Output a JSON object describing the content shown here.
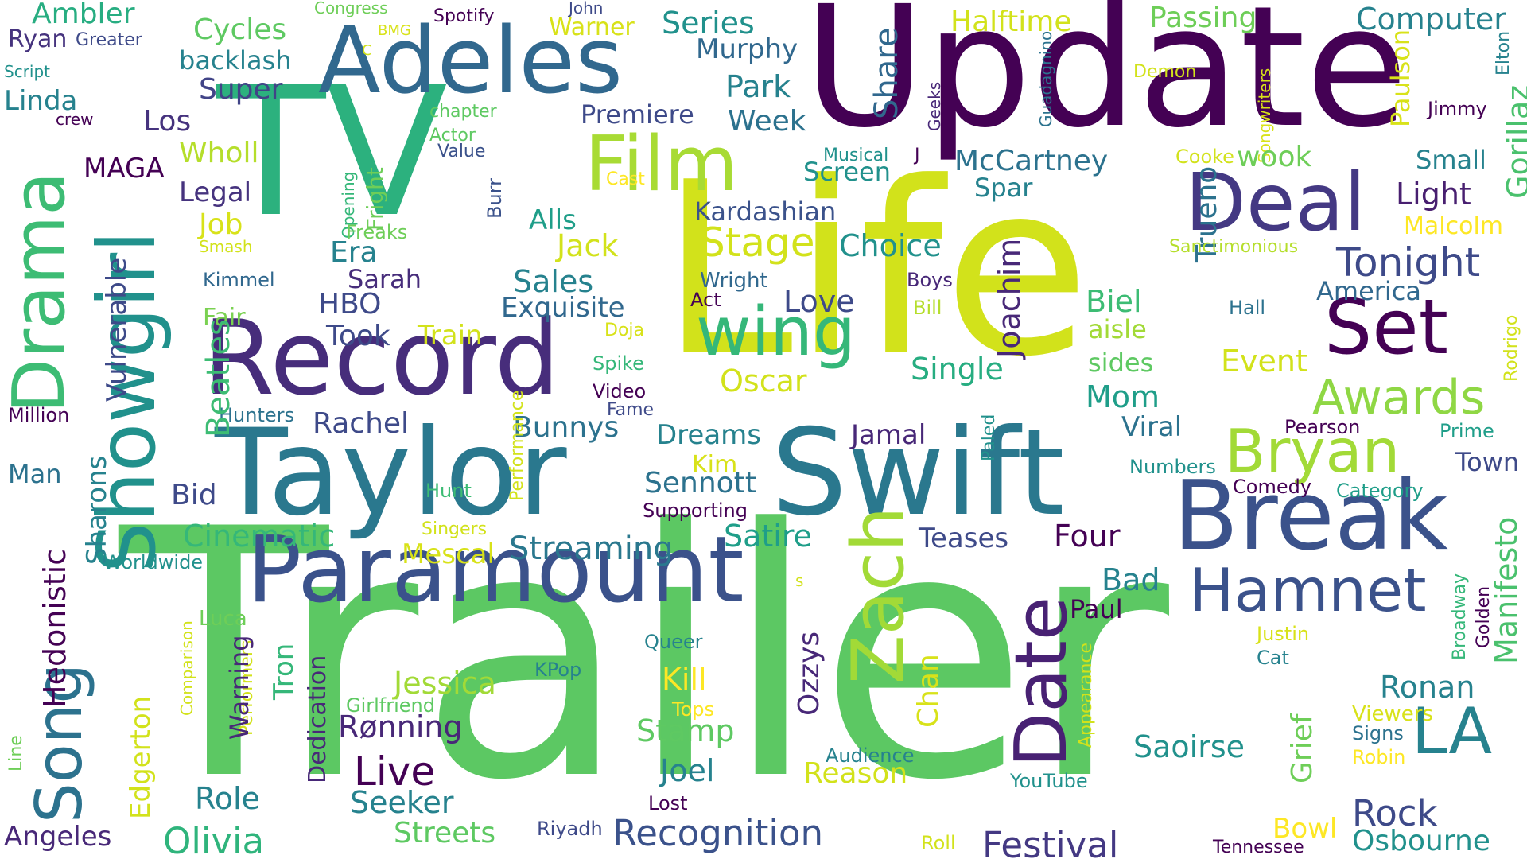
{
  "palette": {
    "dark_purple": "#440154",
    "indigo": "#46337e",
    "slate_blue": "#3e4a89",
    "steel_blue": "#31688e",
    "teal_blue": "#26828e",
    "teal": "#1f9e89",
    "sea_green": "#35b779",
    "green": "#6ece58",
    "lime": "#b5de2b",
    "yellow": "#fde725"
  },
  "words": [
    {
      "text": "Trailer",
      "color": "#5cc863"
    },
    {
      "text": "Life",
      "color": "#d2e21b"
    },
    {
      "text": "TV",
      "color": "#2cb17e"
    },
    {
      "text": "Update",
      "color": "#440154"
    },
    {
      "text": "Taylor",
      "color": "#2a788e"
    },
    {
      "text": "Swift",
      "color": "#2a788e"
    },
    {
      "text": "Record",
      "color": "#472d7b"
    },
    {
      "text": "Paramount",
      "color": "#3b528b"
    },
    {
      "text": "Adeles",
      "color": "#31688e"
    },
    {
      "text": "Break",
      "color": "#3b528b"
    },
    {
      "text": "Showgirl",
      "color": "#21918c"
    },
    {
      "text": "Drama",
      "color": "#3dbc74"
    },
    {
      "text": "Song",
      "color": "#2c728e"
    },
    {
      "text": "Date",
      "color": "#482173"
    },
    {
      "text": "Zach",
      "color": "#a2da37"
    },
    {
      "text": "Deal",
      "color": "#443983"
    },
    {
      "text": "Set",
      "color": "#440154"
    },
    {
      "text": "Film",
      "color": "#a8db34"
    },
    {
      "text": "wing",
      "color": "#35b779"
    },
    {
      "text": "Hamnet",
      "color": "#3b528b"
    },
    {
      "text": "LA",
      "color": "#26828e"
    },
    {
      "text": "Bryan",
      "color": "#a2da37"
    },
    {
      "text": "Awards",
      "color": "#8fd744"
    },
    {
      "text": "Festival",
      "color": "#443983"
    },
    {
      "text": "Recognition",
      "color": "#3b528b"
    },
    {
      "text": "Olivia",
      "color": "#2fb47c"
    },
    {
      "text": "Rock",
      "color": "#3e4a89"
    },
    {
      "text": "Stage",
      "color": "#d2e21b"
    },
    {
      "text": "Tonight",
      "color": "#3e4a89"
    },
    {
      "text": "Live",
      "color": "#440154"
    },
    {
      "text": "Streaming",
      "color": "#2a788e"
    },
    {
      "text": "Paulson",
      "color": "#d8e219"
    },
    {
      "text": "Light",
      "color": "#481f70"
    },
    {
      "text": "Gorillaz",
      "color": "#4ac16d"
    },
    {
      "text": "Computer",
      "color": "#26828e"
    },
    {
      "text": "Halftime",
      "color": "#d2e21b"
    },
    {
      "text": "Passing",
      "color": "#6ece58"
    },
    {
      "text": "Series",
      "color": "#21918c"
    },
    {
      "text": "Murphy",
      "color": "#31688e"
    },
    {
      "text": "Park",
      "color": "#26828e"
    },
    {
      "text": "Week",
      "color": "#2c728e"
    },
    {
      "text": "Premiere",
      "color": "#3e4a89"
    },
    {
      "text": "Share",
      "color": "#31688e"
    },
    {
      "text": "Geeks",
      "color": "#482878"
    },
    {
      "text": "Cycles",
      "color": "#5ec962"
    },
    {
      "text": "Ambler",
      "color": "#27ad81"
    },
    {
      "text": "Ryan",
      "color": "#46337e"
    },
    {
      "text": "Greater",
      "color": "#3e4a89"
    },
    {
      "text": "backlash",
      "color": "#26828e"
    },
    {
      "text": "Super",
      "color": "#414487"
    },
    {
      "text": "Congress",
      "color": "#6ece58"
    },
    {
      "text": "Spotify",
      "color": "#440154"
    },
    {
      "text": "John",
      "color": "#3e4a89"
    },
    {
      "text": "Warner",
      "color": "#d8e219"
    },
    {
      "text": "BMG",
      "color": "#d8e219"
    },
    {
      "text": "C",
      "color": "#d2e21b"
    },
    {
      "text": "Script",
      "color": "#21918c"
    },
    {
      "text": "Linda",
      "color": "#26828e"
    },
    {
      "text": "crew",
      "color": "#440154"
    },
    {
      "text": "Los",
      "color": "#46337e"
    },
    {
      "text": "chapter",
      "color": "#5ec962"
    },
    {
      "text": "Actor",
      "color": "#5ec962"
    },
    {
      "text": "Value",
      "color": "#3b528b"
    },
    {
      "text": "Wholl",
      "color": "#b5de2b"
    },
    {
      "text": "MAGA",
      "color": "#440154"
    },
    {
      "text": "Legal",
      "color": "#46337e"
    },
    {
      "text": "Job",
      "color": "#d8e219"
    },
    {
      "text": "Smash",
      "color": "#d2e21b"
    },
    {
      "text": "Kimmel",
      "color": "#31688e"
    },
    {
      "text": "Fair",
      "color": "#7ad151"
    },
    {
      "text": "Opening",
      "color": "#35b779"
    },
    {
      "text": "Fright",
      "color": "#6ece58"
    },
    {
      "text": "Freaks",
      "color": "#6ece58"
    },
    {
      "text": "Era",
      "color": "#26828e"
    },
    {
      "text": "Sarah",
      "color": "#472d7b"
    },
    {
      "text": "HBO",
      "color": "#3e4a89"
    },
    {
      "text": "Took",
      "color": "#3e4a89"
    },
    {
      "text": "Train",
      "color": "#d2e21b"
    },
    {
      "text": "Burr",
      "color": "#3b528b"
    },
    {
      "text": "Cast",
      "color": "#fde725"
    },
    {
      "text": "Musical",
      "color": "#21918c"
    },
    {
      "text": "J",
      "color": "#440154"
    },
    {
      "text": "Screen",
      "color": "#21918c"
    },
    {
      "text": "McCartney",
      "color": "#2c728e"
    },
    {
      "text": "Spar",
      "color": "#26828e"
    },
    {
      "text": "Kardashian",
      "color": "#3b528b"
    },
    {
      "text": "Alls",
      "color": "#1f9e89"
    },
    {
      "text": "Jack",
      "color": "#d2e21b"
    },
    {
      "text": "Choice",
      "color": "#21918c"
    },
    {
      "text": "Sales",
      "color": "#26828e"
    },
    {
      "text": "Exquisite",
      "color": "#31688e"
    },
    {
      "text": "Wright",
      "color": "#31688e"
    },
    {
      "text": "Act",
      "color": "#440154"
    },
    {
      "text": "Love",
      "color": "#3e4a89"
    },
    {
      "text": "Boys",
      "color": "#482878"
    },
    {
      "text": "Bill",
      "color": "#b5de2b"
    },
    {
      "text": "Joachim",
      "color": "#482878"
    },
    {
      "text": "Trueno",
      "color": "#2c728e"
    },
    {
      "text": "Sanctimonious",
      "color": "#b5de2b"
    },
    {
      "text": "Biel",
      "color": "#3dbc74"
    },
    {
      "text": "aisle",
      "color": "#a2da37"
    },
    {
      "text": "sides",
      "color": "#5ec962"
    },
    {
      "text": "Mom",
      "color": "#1f9e89"
    },
    {
      "text": "Event",
      "color": "#d2e21b"
    },
    {
      "text": "Single",
      "color": "#27ad81"
    },
    {
      "text": "Oscar",
      "color": "#d2e21b"
    },
    {
      "text": "Doja",
      "color": "#d8e219"
    },
    {
      "text": "Spike",
      "color": "#35b779"
    },
    {
      "text": "Video",
      "color": "#440154"
    },
    {
      "text": "Fame",
      "color": "#3e4a89"
    },
    {
      "text": "Demon",
      "color": "#d2e21b"
    },
    {
      "text": "Songwriters",
      "color": "#d8e219"
    },
    {
      "text": "Guadagnino",
      "color": "#2c728e"
    },
    {
      "text": "Elton",
      "color": "#26828e"
    },
    {
      "text": "Jimmy",
      "color": "#440154"
    },
    {
      "text": "Cooke",
      "color": "#d2e21b"
    },
    {
      "text": "wook",
      "color": "#6ece58"
    },
    {
      "text": "Small",
      "color": "#26828e"
    },
    {
      "text": "Malcolm",
      "color": "#fde725"
    },
    {
      "text": "America",
      "color": "#31688e"
    },
    {
      "text": "Hall",
      "color": "#2c728e"
    },
    {
      "text": "Rodrigo",
      "color": "#d2e21b"
    },
    {
      "text": "Prime",
      "color": "#1f9e89"
    },
    {
      "text": "Pearson",
      "color": "#440154"
    },
    {
      "text": "Town",
      "color": "#3e4a89"
    },
    {
      "text": "Viral",
      "color": "#2c728e"
    },
    {
      "text": "Numbers",
      "color": "#21918c"
    },
    {
      "text": "Comedy",
      "color": "#440154"
    },
    {
      "text": "Category",
      "color": "#1f9e89"
    },
    {
      "text": "Paled",
      "color": "#21918c"
    },
    {
      "text": "Jamal",
      "color": "#482878"
    },
    {
      "text": "Kim",
      "color": "#d8e219"
    },
    {
      "text": "Dreams",
      "color": "#26828e"
    },
    {
      "text": "Sennott",
      "color": "#2c728e"
    },
    {
      "text": "Supporting",
      "color": "#440154"
    },
    {
      "text": "Bunnys",
      "color": "#2c728e"
    },
    {
      "text": "Rachel",
      "color": "#3e4a89"
    },
    {
      "text": "Hunters",
      "color": "#2c728e"
    },
    {
      "text": "Beatles",
      "color": "#3dbc74"
    },
    {
      "text": "Vulnerable",
      "color": "#3e4a89"
    },
    {
      "text": "Million",
      "color": "#440154"
    },
    {
      "text": "Man",
      "color": "#2c728e"
    },
    {
      "text": "Bid",
      "color": "#3e4a89"
    },
    {
      "text": "Hunt",
      "color": "#3dbc74"
    },
    {
      "text": "Performance",
      "color": "#d2e21b"
    },
    {
      "text": "Singers",
      "color": "#d2e21b"
    },
    {
      "text": "Cinematic",
      "color": "#35b779"
    },
    {
      "text": "Sharons",
      "color": "#26828e"
    },
    {
      "text": "Hedonistic",
      "color": "#440154"
    },
    {
      "text": "Worldwide",
      "color": "#21918c"
    },
    {
      "text": "Mescal",
      "color": "#d8e219"
    },
    {
      "text": "Satire",
      "color": "#1f9e89"
    },
    {
      "text": "Teases",
      "color": "#3e4a89"
    },
    {
      "text": "Four",
      "color": "#440154"
    },
    {
      "text": "Bad",
      "color": "#26828e"
    },
    {
      "text": "Paul",
      "color": "#440154"
    },
    {
      "text": "Appearance",
      "color": "#d2e21b"
    },
    {
      "text": "Justin",
      "color": "#d8e219"
    },
    {
      "text": "Cat",
      "color": "#26828e"
    },
    {
      "text": "Grief",
      "color": "#6ece58"
    },
    {
      "text": "Manifesto",
      "color": "#4ac16d"
    },
    {
      "text": "Golden",
      "color": "#440154"
    },
    {
      "text": "Broadway",
      "color": "#35b779"
    },
    {
      "text": "Ronan",
      "color": "#26828e"
    },
    {
      "text": "Viewers",
      "color": "#d8e219"
    },
    {
      "text": "Signs",
      "color": "#2c728e"
    },
    {
      "text": "Robin",
      "color": "#fde725"
    },
    {
      "text": "Saoirse",
      "color": "#21918c"
    },
    {
      "text": "Bowl",
      "color": "#fde725"
    },
    {
      "text": "Osbourne",
      "color": "#21918c"
    },
    {
      "text": "Tennessee",
      "color": "#440154"
    },
    {
      "text": "Luca",
      "color": "#6ece58"
    },
    {
      "text": "Comparison",
      "color": "#d2e21b"
    },
    {
      "text": "Performers",
      "color": "#d2e21b"
    },
    {
      "text": "Warning",
      "color": "#482878"
    },
    {
      "text": "Tron",
      "color": "#35b779"
    },
    {
      "text": "Dedication",
      "color": "#482878"
    },
    {
      "text": "Edgerton",
      "color": "#d2e21b"
    },
    {
      "text": "Line",
      "color": "#6ece58"
    },
    {
      "text": "Angeles",
      "color": "#482878"
    },
    {
      "text": "Role",
      "color": "#26828e"
    },
    {
      "text": "Seeker",
      "color": "#26828e"
    },
    {
      "text": "Streets",
      "color": "#5ec962"
    },
    {
      "text": "Riyadh",
      "color": "#3e4a89"
    },
    {
      "text": "Queer",
      "color": "#26828e"
    },
    {
      "text": "KPop",
      "color": "#26828e"
    },
    {
      "text": "Girlfriend",
      "color": "#5ec962"
    },
    {
      "text": "Jessica",
      "color": "#a2da37"
    },
    {
      "text": "Kill",
      "color": "#fde725"
    },
    {
      "text": "Tops",
      "color": "#fde725"
    },
    {
      "text": "Stamp",
      "color": "#5ec962"
    },
    {
      "text": "Rønning",
      "color": "#482878"
    },
    {
      "text": "Joel",
      "color": "#26828e"
    },
    {
      "text": "Audience",
      "color": "#26828e"
    },
    {
      "text": "Reason",
      "color": "#d2e21b"
    },
    {
      "text": "YouTube",
      "color": "#21918c"
    },
    {
      "text": "Lost",
      "color": "#440154"
    },
    {
      "text": "Roll",
      "color": "#d2e21b"
    },
    {
      "text": "Chan",
      "color": "#d8e219"
    },
    {
      "text": "Ozzys",
      "color": "#482878"
    },
    {
      "text": "s",
      "color": "#d2e21b"
    }
  ]
}
